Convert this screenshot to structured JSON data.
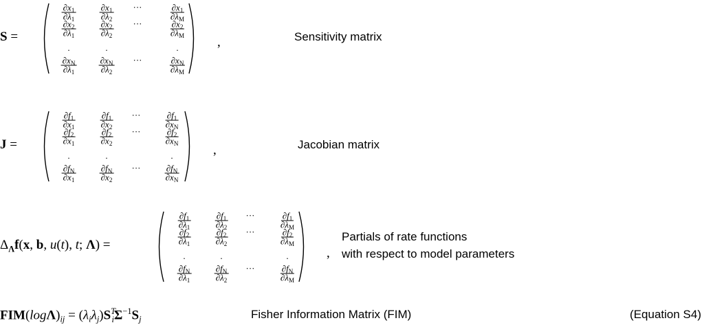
{
  "equations": [
    {
      "lhs": [
        {
          "text": "S",
          "style": "bold"
        },
        {
          "text": " ="
        }
      ],
      "matrix": [
        [
          {
            "num": [
              "∂x",
              "1"
            ],
            "den": [
              "∂λ",
              "1"
            ]
          },
          {
            "num": [
              "∂x",
              "1"
            ],
            "den": [
              "∂λ",
              "2"
            ]
          },
          "···",
          {
            "num": [
              "∂x",
              "1"
            ],
            "den": [
              "∂λ",
              "M"
            ]
          }
        ],
        [
          {
            "num": [
              "∂x",
              "2"
            ],
            "den": [
              "∂λ",
              "1"
            ]
          },
          {
            "num": [
              "∂x",
              "2"
            ],
            "den": [
              "∂λ",
              "2"
            ]
          },
          "···",
          {
            "num": [
              "∂x",
              "2"
            ],
            "den": [
              "∂λ",
              "M"
            ]
          }
        ],
        [
          ".",
          ".",
          null,
          "."
        ],
        [
          {
            "num": [
              "∂x",
              "N"
            ],
            "den": [
              "∂λ",
              "1"
            ]
          },
          {
            "num": [
              "∂x",
              "N"
            ],
            "den": [
              "∂λ",
              "2"
            ]
          },
          "···",
          {
            "num": [
              "∂x",
              "N"
            ],
            "den": [
              "∂λ",
              "M"
            ]
          }
        ]
      ],
      "comma": ",",
      "label": [
        "Sensitivity matrix"
      ]
    },
    {
      "lhs": [
        {
          "text": "J",
          "style": "bold"
        },
        {
          "text": " ="
        }
      ],
      "matrix": [
        [
          {
            "num": [
              "∂f",
              "1"
            ],
            "den": [
              "∂x",
              "1"
            ]
          },
          {
            "num": [
              "∂f",
              "1"
            ],
            "den": [
              "∂x",
              "2"
            ]
          },
          "···",
          {
            "num": [
              "∂f",
              "1"
            ],
            "den": [
              "∂x",
              "N"
            ]
          }
        ],
        [
          {
            "num": [
              "∂f",
              "2"
            ],
            "den": [
              "∂x",
              "1"
            ]
          },
          {
            "num": [
              "∂f",
              "2"
            ],
            "den": [
              "∂x",
              "2"
            ]
          },
          "···",
          {
            "num": [
              "∂f",
              "2"
            ],
            "den": [
              "∂x",
              "N"
            ]
          }
        ],
        [
          ".",
          ".",
          null,
          "."
        ],
        [
          {
            "num": [
              "∂f",
              "N"
            ],
            "den": [
              "∂x",
              "1"
            ]
          },
          {
            "num": [
              "∂f",
              "N"
            ],
            "den": [
              "∂x",
              "2"
            ]
          },
          "···",
          {
            "num": [
              "∂f",
              "N"
            ],
            "den": [
              "∂x",
              "N"
            ]
          }
        ]
      ],
      "comma": ",",
      "label": [
        "Jacobian matrix"
      ]
    },
    {
      "lhs": [
        {
          "text": "Δ"
        },
        {
          "text": "Λ",
          "style": "bold-sub"
        },
        {
          "text": "f",
          "style": "bold"
        },
        {
          "text": "("
        },
        {
          "text": "x",
          "style": "bold"
        },
        {
          "text": ", "
        },
        {
          "text": "b",
          "style": "bold"
        },
        {
          "text": ", "
        },
        {
          "text": "u",
          "style": "italic"
        },
        {
          "text": "("
        },
        {
          "text": "t",
          "style": "italic"
        },
        {
          "text": "), "
        },
        {
          "text": "t",
          "style": "italic"
        },
        {
          "text": "; "
        },
        {
          "text": "Λ",
          "style": "bold"
        },
        {
          "text": ") ="
        }
      ],
      "matrix": [
        [
          {
            "num": [
              "∂f",
              "1"
            ],
            "den": [
              "∂λ",
              "1"
            ]
          },
          {
            "num": [
              "∂f",
              "1"
            ],
            "den": [
              "∂λ",
              "2"
            ]
          },
          "···",
          {
            "num": [
              "∂f",
              "1"
            ],
            "den": [
              "∂λ",
              "M"
            ]
          }
        ],
        [
          {
            "num": [
              "∂f",
              "2"
            ],
            "den": [
              "∂λ",
              "1"
            ]
          },
          {
            "num": [
              "∂f",
              "2"
            ],
            "den": [
              "∂λ",
              "2"
            ]
          },
          "···",
          {
            "num": [
              "∂f",
              "2"
            ],
            "den": [
              "∂λ",
              "M"
            ]
          }
        ],
        [
          ".",
          ".",
          null,
          "."
        ],
        [
          {
            "num": [
              "∂f",
              "N"
            ],
            "den": [
              "∂λ",
              "1"
            ]
          },
          {
            "num": [
              "∂f",
              "N"
            ],
            "den": [
              "∂λ",
              "2"
            ]
          },
          "···",
          {
            "num": [
              "∂f",
              "N"
            ],
            "den": [
              "∂λ",
              "M"
            ]
          }
        ]
      ],
      "comma": ",",
      "label": [
        "Partials of rate functions",
        "with respect to model parameters"
      ]
    }
  ],
  "fim": {
    "formula": [
      {
        "text": "FIM",
        "style": "bold"
      },
      {
        "text": "("
      },
      {
        "text": "log",
        "style": "italic"
      },
      {
        "text": "Λ",
        "style": "bold"
      },
      {
        "text": ")"
      },
      {
        "text": "ij",
        "style": "italic-sub"
      },
      {
        "text": " = ("
      },
      {
        "text": "λ",
        "style": "italic"
      },
      {
        "text": "i",
        "style": "italic-sub"
      },
      {
        "text": "λ",
        "style": "italic"
      },
      {
        "text": "j",
        "style": "italic-sub"
      },
      {
        "text": ")"
      },
      {
        "text": "S",
        "style": "bold"
      },
      {
        "text": "T",
        "style": "italic-sup"
      },
      {
        "text": "i",
        "style": "italic-sub-back"
      },
      {
        "text": "Σ",
        "style": "bold"
      },
      {
        "text": "−1",
        "style": "sup"
      },
      {
        "text": "S",
        "style": "bold"
      },
      {
        "text": "j",
        "style": "italic-sub"
      }
    ],
    "label": "Fisher Information Matrix (FIM)",
    "equation_number": "(Equation S4)"
  }
}
